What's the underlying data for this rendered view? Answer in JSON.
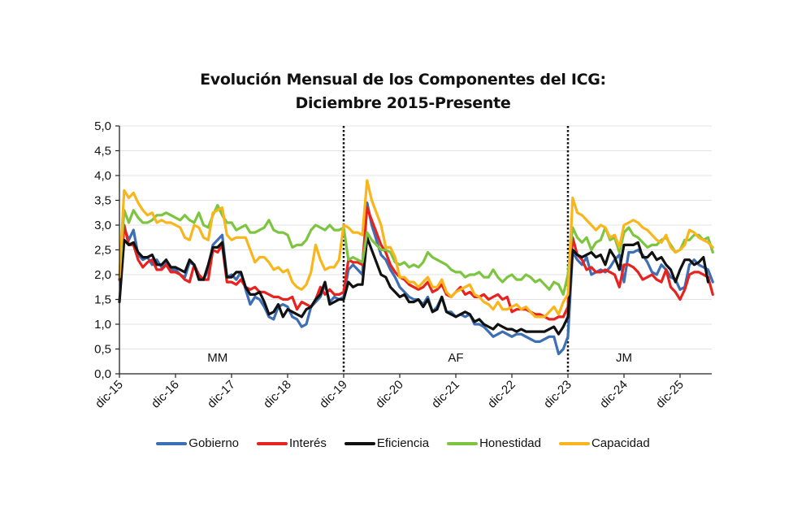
{
  "chart_data": {
    "type": "line",
    "title": [
      "Evolución Mensual de los Componentes del ICG:",
      "Diciembre 2015-Presente"
    ],
    "xlabel": "",
    "ylabel": "",
    "ylim": [
      0,
      5
    ],
    "yticks": [
      "0,0",
      "0,5",
      "1,0",
      "1,5",
      "2,0",
      "2,5",
      "3,0",
      "3,5",
      "4,0",
      "4,5",
      "5,0"
    ],
    "ytick_values": [
      0,
      0.5,
      1,
      1.5,
      2,
      2.5,
      3,
      3.5,
      4,
      4.5,
      5
    ],
    "xticks": [
      "dic-15",
      "dic-16",
      "dic-17",
      "dic-18",
      "dic-19",
      "dic-20",
      "dic-21",
      "dic-22",
      "dic-23",
      "dic-24",
      "dic-25"
    ],
    "xtick_index": [
      0,
      12,
      24,
      36,
      48,
      60,
      72,
      84,
      96,
      108,
      120
    ],
    "x_range_months": [
      0,
      127
    ],
    "x_start": "dic-15",
    "grid": "horizontal",
    "legend_position": "bottom",
    "dividers": [
      48,
      96
    ],
    "regions": [
      {
        "label": "MM",
        "center_index": 21
      },
      {
        "label": "AF",
        "center_index": 72
      },
      {
        "label": "JM",
        "center_index": 108
      }
    ],
    "series": [
      {
        "name": "Gobierno",
        "color": "#3d6fb5",
        "values": [
          1.9,
          2.95,
          2.7,
          2.9,
          2.4,
          2.3,
          2.35,
          2.2,
          2.3,
          2.15,
          2.25,
          2.1,
          2.1,
          2.0,
          1.95,
          2.25,
          2.2,
          1.95,
          1.9,
          2.1,
          2.6,
          2.7,
          2.8,
          1.95,
          2.0,
          1.9,
          2.05,
          1.7,
          1.4,
          1.55,
          1.5,
          1.35,
          1.15,
          1.1,
          1.35,
          1.4,
          1.35,
          1.15,
          1.1,
          0.95,
          1.0,
          1.35,
          1.45,
          1.55,
          1.8,
          1.45,
          1.55,
          1.5,
          1.55,
          2.1,
          2.2,
          2.1,
          2.0,
          3.45,
          3.0,
          2.7,
          2.4,
          2.3,
          2.1,
          1.95,
          1.75,
          1.65,
          1.55,
          1.5,
          1.5,
          1.4,
          1.55,
          1.25,
          1.35,
          1.55,
          1.25,
          1.25,
          1.15,
          1.2,
          1.15,
          1.2,
          1.0,
          1.0,
          0.95,
          0.85,
          0.75,
          0.8,
          0.85,
          0.8,
          0.75,
          0.8,
          0.8,
          0.75,
          0.7,
          0.65,
          0.65,
          0.7,
          0.75,
          0.75,
          0.4,
          0.5,
          0.75,
          2.45,
          2.3,
          2.2,
          2.35,
          2.0,
          2.05,
          2.1,
          2.05,
          2.15,
          2.3,
          2.4,
          1.85,
          2.45,
          2.45,
          2.5,
          2.4,
          2.25,
          2.05,
          2.0,
          2.2,
          2.1,
          1.95,
          1.9,
          1.7,
          1.75,
          2.2,
          2.3,
          2.2,
          2.15,
          2.1,
          1.85
        ]
      },
      {
        "name": "Interés",
        "color": "#e8221e",
        "values": [
          1.9,
          3.0,
          2.6,
          2.6,
          2.3,
          2.15,
          2.25,
          2.3,
          2.1,
          2.1,
          2.2,
          2.05,
          2.05,
          2.0,
          1.9,
          1.85,
          2.2,
          2.0,
          1.9,
          1.9,
          2.5,
          2.45,
          2.6,
          1.85,
          1.85,
          1.8,
          1.9,
          1.75,
          1.7,
          1.75,
          1.65,
          1.65,
          1.6,
          1.55,
          1.55,
          1.5,
          1.5,
          1.55,
          1.3,
          1.45,
          1.4,
          1.35,
          1.5,
          1.75,
          1.6,
          1.7,
          1.6,
          1.6,
          1.65,
          2.3,
          2.25,
          2.25,
          2.2,
          3.35,
          3.1,
          2.85,
          2.6,
          2.45,
          2.2,
          2.05,
          1.95,
          1.9,
          1.8,
          1.75,
          1.7,
          1.75,
          1.85,
          1.65,
          1.7,
          1.8,
          1.6,
          1.55,
          1.65,
          1.75,
          1.6,
          1.65,
          1.55,
          1.55,
          1.6,
          1.5,
          1.55,
          1.6,
          1.5,
          1.55,
          1.25,
          1.3,
          1.3,
          1.3,
          1.25,
          1.2,
          1.2,
          1.15,
          1.1,
          1.1,
          1.15,
          1.15,
          1.35,
          2.75,
          2.4,
          2.3,
          2.1,
          2.15,
          2.05,
          2.05,
          2.1,
          2.05,
          2.0,
          1.75,
          2.2,
          2.2,
          2.15,
          2.05,
          1.9,
          1.95,
          2.0,
          1.9,
          1.85,
          2.1,
          1.75,
          1.65,
          1.5,
          1.7,
          2.0,
          2.05,
          2.05,
          2.0,
          1.95,
          1.6
        ]
      },
      {
        "name": "Eficiencia",
        "color": "#111111",
        "values": [
          1.45,
          2.7,
          2.6,
          2.65,
          2.45,
          2.35,
          2.35,
          2.4,
          2.2,
          2.2,
          2.3,
          2.15,
          2.15,
          2.1,
          2.05,
          2.3,
          2.2,
          1.9,
          1.9,
          2.2,
          2.55,
          2.55,
          2.65,
          1.95,
          1.95,
          2.05,
          2.05,
          1.75,
          1.6,
          1.6,
          1.65,
          1.45,
          1.2,
          1.25,
          1.4,
          1.15,
          1.3,
          1.25,
          1.2,
          1.15,
          1.3,
          1.35,
          1.5,
          1.6,
          1.85,
          1.4,
          1.45,
          1.5,
          1.5,
          1.85,
          1.75,
          1.8,
          1.8,
          2.75,
          2.5,
          2.25,
          2.0,
          1.95,
          1.75,
          1.65,
          1.55,
          1.6,
          1.45,
          1.45,
          1.5,
          1.35,
          1.5,
          1.25,
          1.3,
          1.55,
          1.25,
          1.2,
          1.15,
          1.2,
          1.25,
          1.2,
          1.05,
          1.1,
          1.0,
          0.95,
          0.9,
          1.0,
          0.95,
          0.9,
          0.9,
          0.85,
          0.9,
          0.85,
          0.85,
          0.85,
          0.85,
          0.85,
          0.9,
          0.95,
          0.8,
          0.95,
          1.15,
          2.5,
          2.4,
          2.35,
          2.4,
          2.45,
          2.35,
          2.4,
          2.2,
          2.5,
          2.35,
          2.1,
          2.6,
          2.6,
          2.6,
          2.65,
          2.35,
          2.35,
          2.45,
          2.3,
          2.35,
          2.2,
          2.1,
          1.85,
          2.1,
          2.3,
          2.3,
          2.2,
          2.25,
          2.35,
          1.85
        ]
      },
      {
        "name": "Honestidad",
        "color": "#7dc540",
        "values": [
          1.95,
          3.3,
          3.05,
          3.3,
          3.15,
          3.05,
          3.05,
          3.1,
          3.2,
          3.2,
          3.25,
          3.2,
          3.15,
          3.1,
          3.2,
          3.1,
          3.05,
          3.25,
          3.0,
          2.95,
          3.2,
          3.4,
          3.2,
          3.05,
          3.05,
          2.9,
          2.95,
          3.0,
          2.85,
          2.85,
          2.9,
          2.95,
          3.1,
          2.9,
          2.85,
          2.85,
          2.8,
          2.55,
          2.6,
          2.6,
          2.7,
          2.9,
          3.0,
          2.95,
          2.9,
          3.0,
          2.9,
          2.9,
          2.95,
          2.3,
          2.35,
          2.3,
          2.25,
          2.85,
          2.7,
          2.6,
          2.5,
          2.5,
          2.45,
          2.25,
          2.2,
          2.25,
          2.15,
          2.2,
          2.15,
          2.25,
          2.45,
          2.35,
          2.3,
          2.25,
          2.2,
          2.1,
          2.05,
          2.05,
          1.95,
          2.0,
          2.0,
          2.05,
          1.95,
          1.95,
          2.1,
          1.95,
          1.85,
          1.95,
          2.0,
          1.9,
          1.9,
          2.0,
          1.95,
          1.85,
          1.9,
          1.8,
          1.7,
          1.85,
          1.8,
          1.6,
          2.0,
          2.95,
          2.75,
          2.65,
          2.75,
          2.5,
          2.65,
          2.7,
          2.95,
          2.7,
          2.75,
          2.45,
          2.85,
          2.95,
          2.8,
          2.75,
          2.65,
          2.55,
          2.6,
          2.6,
          2.7,
          2.75,
          2.6,
          2.45,
          2.5,
          2.7,
          2.7,
          2.8,
          2.8,
          2.7,
          2.75,
          2.45
        ]
      },
      {
        "name": "Capacidad",
        "color": "#f8b61c",
        "values": [
          1.95,
          3.7,
          3.55,
          3.65,
          3.45,
          3.3,
          3.2,
          3.25,
          3.05,
          3.1,
          3.05,
          3.05,
          3.0,
          2.95,
          2.75,
          2.7,
          3.0,
          2.95,
          2.75,
          2.7,
          3.25,
          3.3,
          3.35,
          2.8,
          2.7,
          2.75,
          2.75,
          2.75,
          2.5,
          2.25,
          2.35,
          2.35,
          2.25,
          2.1,
          2.15,
          2.05,
          2.1,
          1.85,
          1.75,
          1.7,
          1.8,
          2.05,
          2.6,
          2.3,
          2.1,
          2.15,
          2.15,
          2.3,
          3.0,
          2.95,
          2.85,
          2.85,
          2.8,
          3.9,
          3.5,
          3.25,
          3.0,
          2.55,
          2.55,
          2.35,
          1.95,
          1.95,
          1.85,
          1.85,
          1.75,
          1.85,
          1.95,
          1.75,
          1.75,
          1.9,
          1.65,
          1.55,
          1.65,
          1.7,
          1.75,
          1.8,
          1.6,
          1.55,
          1.45,
          1.4,
          1.3,
          1.45,
          1.3,
          1.3,
          1.35,
          1.4,
          1.3,
          1.35,
          1.25,
          1.15,
          1.15,
          1.15,
          1.25,
          1.35,
          1.2,
          1.45,
          1.6,
          3.55,
          3.25,
          3.2,
          3.1,
          3.0,
          2.9,
          3.0,
          2.95,
          2.75,
          2.8,
          2.55,
          3.0,
          3.05,
          3.1,
          3.05,
          2.95,
          2.9,
          2.8,
          2.7,
          2.65,
          2.8,
          2.55,
          2.45,
          2.5,
          2.6,
          2.9,
          2.85,
          2.75,
          2.7,
          2.65,
          2.55
        ]
      }
    ]
  }
}
